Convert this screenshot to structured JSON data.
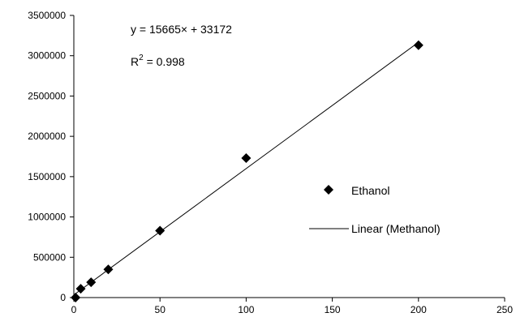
{
  "chart_data": {
    "type": "scatter",
    "xlim": [
      0,
      250
    ],
    "ylim": [
      0,
      3500000
    ],
    "x_ticks": [
      "0",
      "50",
      "100",
      "150",
      "200",
      "250"
    ],
    "y_ticks": [
      "0",
      "500000",
      "1000000",
      "1500000",
      "2000000",
      "2500000",
      "3000000",
      "3500000"
    ],
    "grid": false,
    "legend_position": "right",
    "series": [
      {
        "name": "Ethanol",
        "marker": "diamond",
        "color": "#000000",
        "x": [
          1,
          4,
          10,
          20,
          50,
          100,
          200
        ],
        "y": [
          0,
          110000,
          190000,
          350000,
          830000,
          1730000,
          3130000
        ]
      },
      {
        "name": "Linear (Methanol)",
        "type": "line",
        "color": "#000000",
        "slope": 15665,
        "intercept": 33172,
        "x_range": [
          1,
          200
        ]
      }
    ],
    "annotations": {
      "equation": "y = 15665× + 33172",
      "r2_prefix": "R",
      "r2_sup": "2",
      "r2_suffix": " = 0.998"
    }
  }
}
